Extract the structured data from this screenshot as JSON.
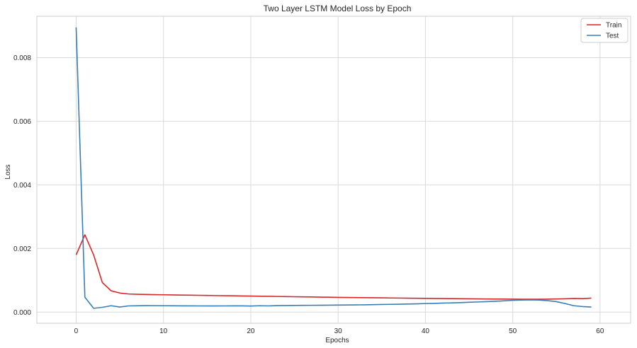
{
  "chart_data": {
    "type": "line",
    "title": "Two Layer LSTM Model Loss by Epoch",
    "xlabel": "Epochs",
    "ylabel": "Loss",
    "xlim": [
      -4.5,
      63.5
    ],
    "ylim": [
      -0.00035,
      0.0093
    ],
    "xticks": [
      0,
      10,
      20,
      30,
      40,
      50,
      60
    ],
    "yticks": [
      0.0,
      0.002,
      0.004,
      0.006,
      0.008
    ],
    "ytick_labels": [
      "0.000",
      "0.002",
      "0.004",
      "0.006",
      "0.008"
    ],
    "grid": true,
    "legend_position": "top-right",
    "x": [
      0,
      1,
      2,
      3,
      4,
      5,
      6,
      7,
      8,
      9,
      10,
      11,
      12,
      13,
      14,
      15,
      16,
      17,
      18,
      19,
      20,
      21,
      22,
      23,
      24,
      25,
      26,
      27,
      28,
      29,
      30,
      31,
      32,
      33,
      34,
      35,
      36,
      37,
      38,
      39,
      40,
      41,
      42,
      43,
      44,
      45,
      46,
      47,
      48,
      49,
      50,
      51,
      52,
      53,
      54,
      55,
      56,
      57,
      58,
      59
    ],
    "series": [
      {
        "name": "Train",
        "color": "#d62728",
        "values": [
          0.0018,
          0.00243,
          0.0018,
          0.00093,
          0.00067,
          0.0006,
          0.00057,
          0.00056,
          0.000555,
          0.00055,
          0.000545,
          0.00054,
          0.000536,
          0.000532,
          0.000528,
          0.000524,
          0.00052,
          0.000516,
          0.000512,
          0.000508,
          0.000504,
          0.0005,
          0.000496,
          0.000492,
          0.000488,
          0.000484,
          0.00048,
          0.000476,
          0.000472,
          0.000468,
          0.000464,
          0.00046,
          0.000457,
          0.000454,
          0.000451,
          0.000448,
          0.000445,
          0.000442,
          0.000439,
          0.000436,
          0.000433,
          0.00043,
          0.000427,
          0.000424,
          0.000421,
          0.000418,
          0.000415,
          0.000413,
          0.000411,
          0.000409,
          0.000407,
          0.000405,
          0.000404,
          0.000405,
          0.000408,
          0.000413,
          0.00042,
          0.00043,
          0.000425,
          0.00044
        ]
      },
      {
        "name": "Test",
        "color": "#377eb8",
        "values": [
          0.00895,
          0.00047,
          0.00012,
          0.00015,
          0.0002,
          0.00016,
          0.000195,
          0.000198,
          0.000205,
          0.000203,
          0.0002,
          0.000198,
          0.000197,
          0.000196,
          0.000195,
          0.000194,
          0.000193,
          0.000195,
          0.000196,
          0.000197,
          0.00019,
          0.0002,
          0.000195,
          0.000205,
          0.000208,
          0.00021,
          0.000212,
          0.000214,
          0.000216,
          0.000218,
          0.00022,
          0.000225,
          0.000226,
          0.00023,
          0.000235,
          0.00024,
          0.000245,
          0.00025,
          0.000255,
          0.00026,
          0.00027,
          0.000275,
          0.000285,
          0.00029,
          0.0003,
          0.00031,
          0.00032,
          0.00033,
          0.00034,
          0.000355,
          0.00037,
          0.00038,
          0.000385,
          0.00038,
          0.00036,
          0.00033,
          0.00027,
          0.0002,
          0.000175,
          0.00016
        ]
      }
    ]
  }
}
